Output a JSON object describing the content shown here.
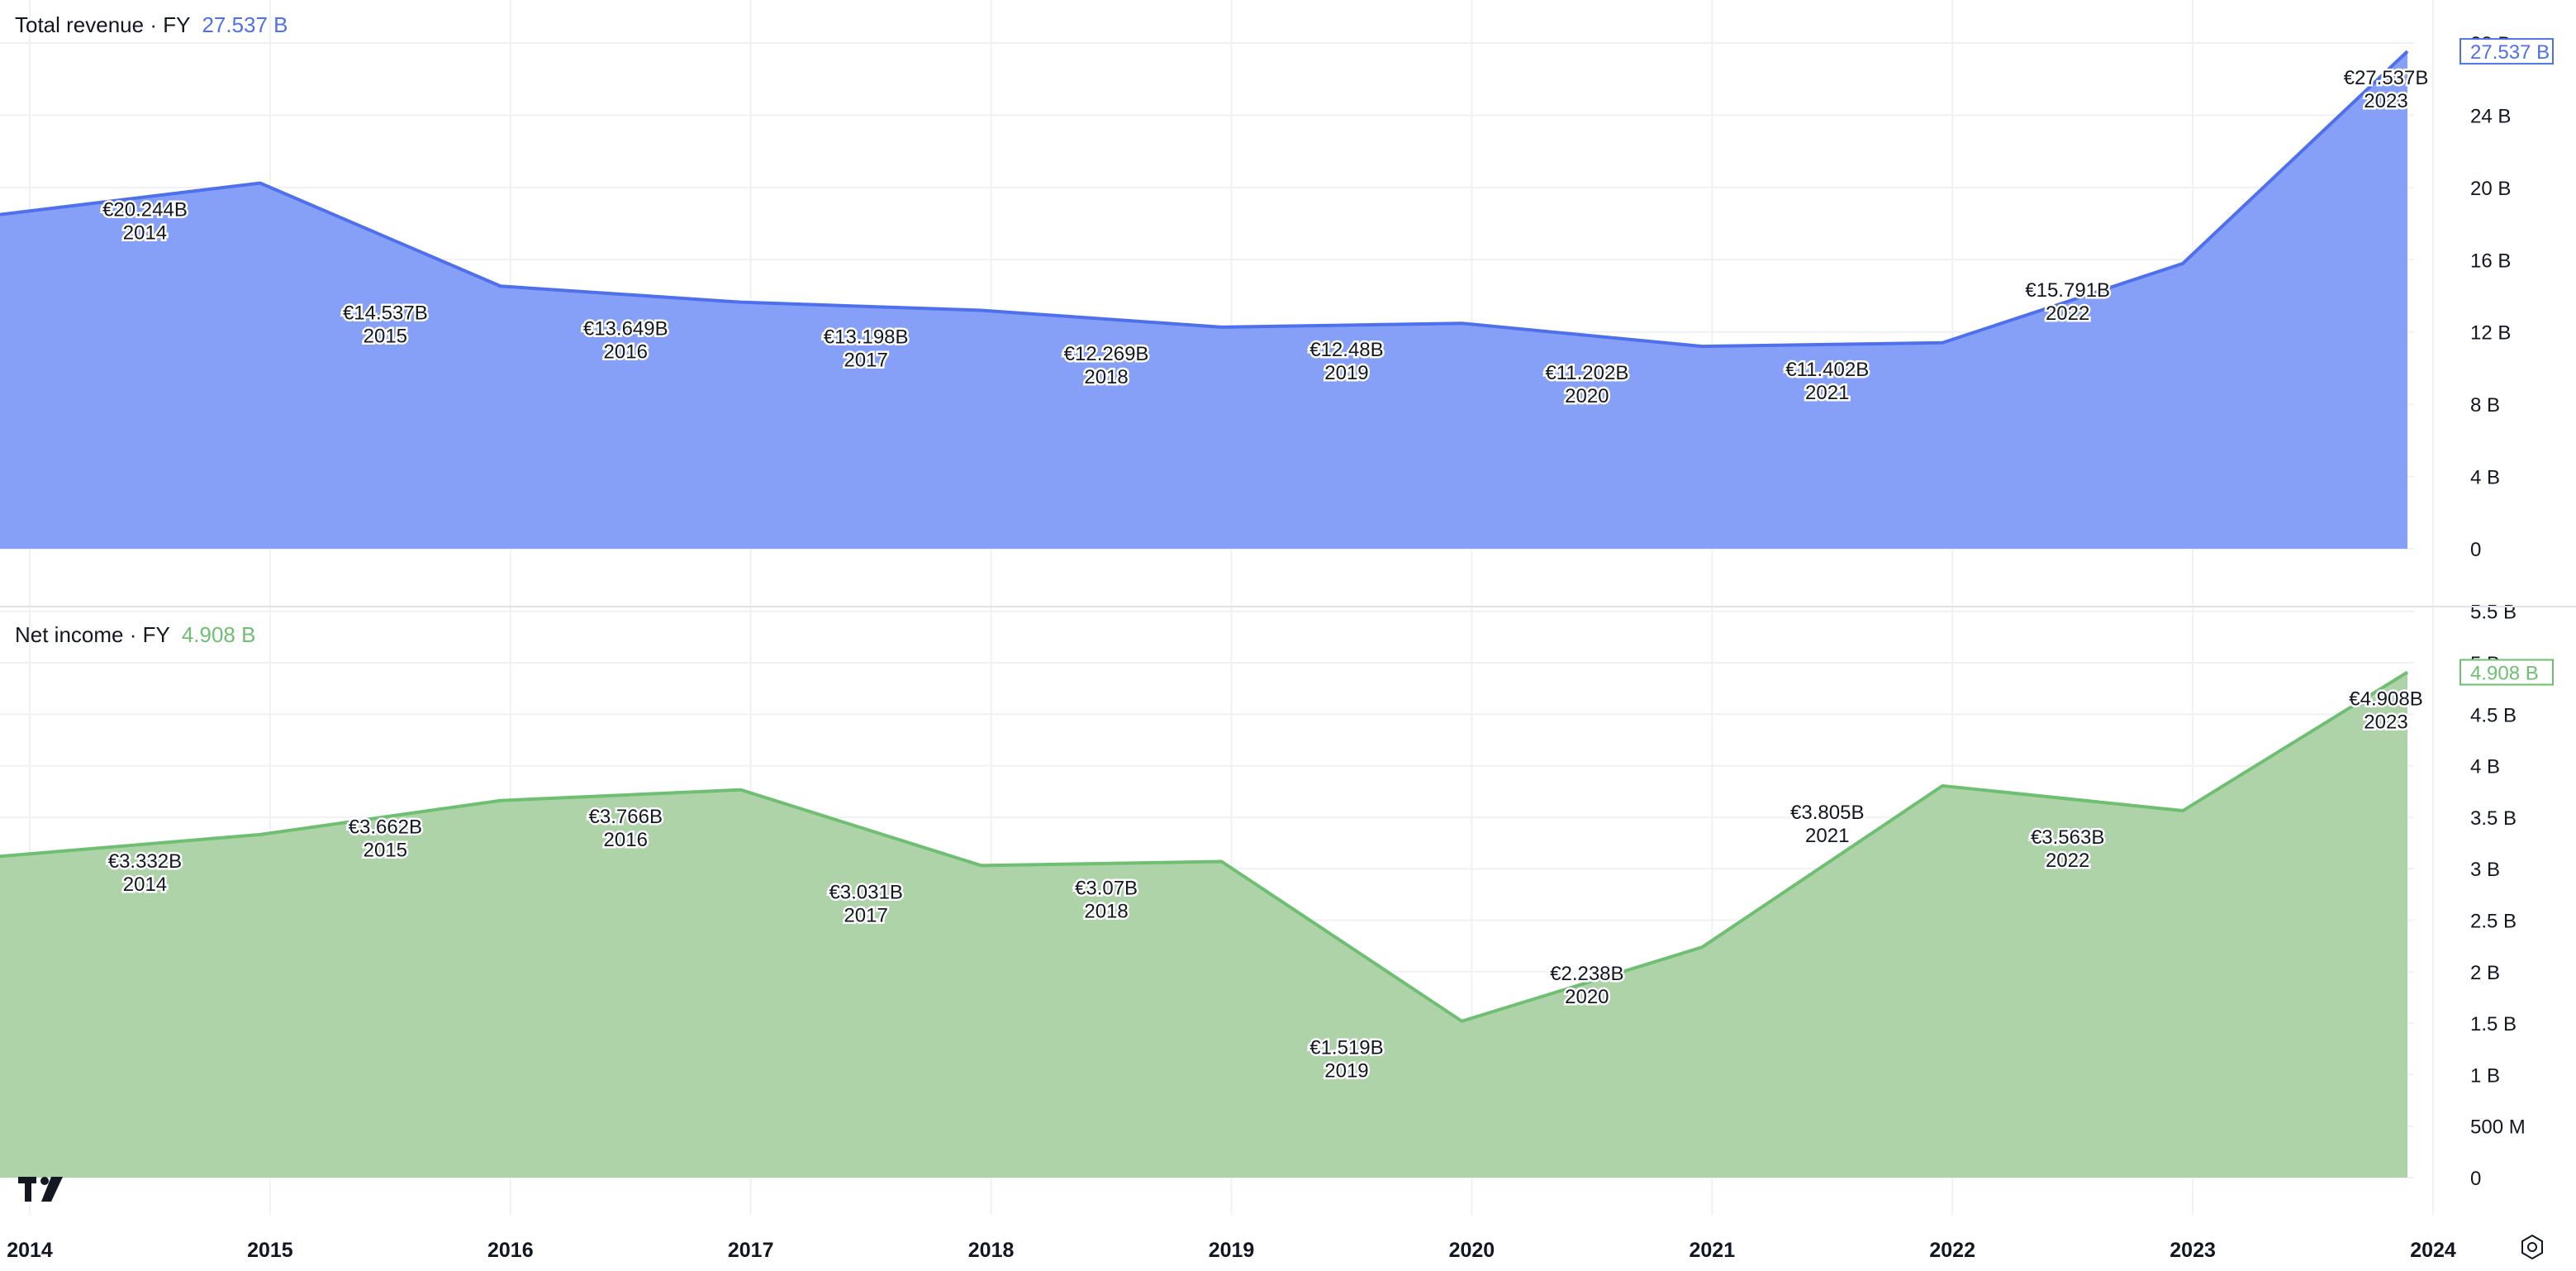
{
  "panels": {
    "top": {
      "title": "Total revenue · FY",
      "value": "27.537 B",
      "badge": "27.537 B",
      "color": "#4f70ec",
      "fill": "#869ff7"
    },
    "bottom": {
      "title": "Net income · FY",
      "value": "4.908 B",
      "badge": "4.908 B",
      "color": "#6fbf73",
      "fill": "#aed3a9"
    }
  },
  "chart_data": [
    {
      "type": "area",
      "title": "Total revenue · FY",
      "x": [
        2014,
        2015,
        2016,
        2017,
        2018,
        2019,
        2020,
        2021,
        2022,
        2023
      ],
      "series": [
        {
          "name": "Total revenue",
          "values": [
            20.244,
            14.537,
            13.649,
            13.198,
            12.269,
            12.48,
            11.202,
            11.402,
            15.791,
            27.537
          ]
        }
      ],
      "left_edge_value": 18.5,
      "data_labels": [
        "€20.244B",
        "€14.537B",
        "€13.649B",
        "€13.198B",
        "€12.269B",
        "€12.48B",
        "€11.202B",
        "€11.402B",
        "€15.791B",
        "€27.537B"
      ],
      "point_years": [
        "2014",
        "2015",
        "2016",
        "2017",
        "2018",
        "2019",
        "2020",
        "2021",
        "2022",
        "2023"
      ],
      "y_ticks": [
        {
          "v": 0,
          "label": "0"
        },
        {
          "v": 4,
          "label": "4 B"
        },
        {
          "v": 8,
          "label": "8 B"
        },
        {
          "v": 12,
          "label": "12 B"
        },
        {
          "v": 16,
          "label": "16 B"
        },
        {
          "v": 20,
          "label": "20 B"
        },
        {
          "v": 24,
          "label": "24 B"
        },
        {
          "v": 28,
          "label": "28 B"
        }
      ],
      "ylim": [
        0,
        28
      ]
    },
    {
      "type": "area",
      "title": "Net income · FY",
      "x": [
        2014,
        2015,
        2016,
        2017,
        2018,
        2019,
        2020,
        2021,
        2022,
        2023
      ],
      "series": [
        {
          "name": "Net income",
          "values": [
            3.332,
            3.662,
            3.766,
            3.031,
            3.07,
            1.519,
            2.238,
            3.805,
            3.563,
            4.908
          ]
        }
      ],
      "left_edge_value": 3.12,
      "data_labels": [
        "€3.332B",
        "€3.662B",
        "€3.766B",
        "€3.031B",
        "€3.07B",
        "€1.519B",
        "€2.238B",
        "€3.805B",
        "€3.563B",
        "€4.908B"
      ],
      "point_years": [
        "2014",
        "2015",
        "2016",
        "2017",
        "2018",
        "2019",
        "2020",
        "2021",
        "2022",
        "2023"
      ],
      "y_ticks": [
        {
          "v": 0,
          "label": "0"
        },
        {
          "v": 0.5,
          "label": "500 M"
        },
        {
          "v": 1,
          "label": "1 B"
        },
        {
          "v": 1.5,
          "label": "1.5 B"
        },
        {
          "v": 2,
          "label": "2 B"
        },
        {
          "v": 2.5,
          "label": "2.5 B"
        },
        {
          "v": 3,
          "label": "3 B"
        },
        {
          "v": 3.5,
          "label": "3.5 B"
        },
        {
          "v": 4,
          "label": "4 B"
        },
        {
          "v": 4.5,
          "label": "4.5 B"
        },
        {
          "v": 5,
          "label": "5 B"
        },
        {
          "v": 5.5,
          "label": "5.5 B"
        }
      ],
      "ylim": [
        0,
        5
      ]
    }
  ],
  "x_axis": {
    "years": [
      2014,
      2015,
      2016,
      2017,
      2018,
      2019,
      2020,
      2021,
      2022,
      2023,
      2024
    ],
    "labels": [
      "2014",
      "2015",
      "2016",
      "2017",
      "2018",
      "2019",
      "2020",
      "2021",
      "2022",
      "2023",
      "2024"
    ]
  },
  "icons": {
    "logo": "tradingview-logo-icon",
    "settings": "settings-icon"
  }
}
